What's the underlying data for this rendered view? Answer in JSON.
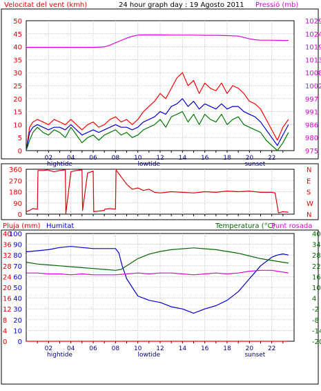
{
  "panel1": {
    "left_title": "Velocitat del vent (kmh)",
    "center_title": "24 hour graph day : 19 Agosto 2011",
    "right_title": "Pressió (mb)"
  },
  "panel3": {
    "left_title_a": "Pluja (mm)",
    "left_title_b": "Humitat",
    "right_title_a": "Temperatura (°C)",
    "right_title_b": "Punt rosada"
  },
  "x_axis": {
    "hour_labels": [
      "02",
      "04",
      "06",
      "08",
      "10",
      "12",
      "14",
      "16",
      "18",
      "20",
      "22"
    ],
    "sub_labels": [
      "hightide",
      "lowtide",
      "sunset"
    ]
  },
  "chart_data": [
    {
      "type": "line",
      "title": "24 hour graph day : 19 Agosto 2011",
      "xlabel": "",
      "x_unit": "hour",
      "ylabel": "Velocitat del vent (kmh)",
      "ylim": [
        0,
        50
      ],
      "yticks": [
        "0",
        "5",
        "10",
        "15",
        "20",
        "25",
        "30",
        "35",
        "40",
        "45",
        "50"
      ],
      "y2label": "Pressió (mb)",
      "y2lim": [
        974,
        1030
      ],
      "y2ticks": [
        "975",
        "980",
        "986",
        "991",
        "997",
        "1002",
        "1008",
        "1013",
        "1019",
        "1024",
        "1029"
      ],
      "grid": true,
      "series": [
        {
          "name": "",
          "color": "#ff0000",
          "axis": "left",
          "x": [
            0,
            0.3,
            0.6,
            1,
            1.5,
            2,
            2.5,
            3,
            3.5,
            4,
            4.5,
            5,
            5.5,
            6,
            6.5,
            7,
            7.5,
            8,
            8.5,
            9,
            9.5,
            10,
            10.5,
            11,
            11.5,
            12,
            12.5,
            13,
            13.5,
            14,
            14.5,
            15,
            15.5,
            16,
            16.5,
            17,
            17.5,
            18,
            18.5,
            19,
            19.5,
            20,
            20.5,
            21,
            21.5,
            22,
            22.5,
            23,
            23.5
          ],
          "y": [
            0,
            9,
            11,
            12,
            11,
            10,
            12,
            11,
            10,
            12,
            10,
            8,
            10,
            11,
            9,
            10,
            12,
            13,
            11,
            12,
            10,
            12,
            15,
            17,
            19,
            22,
            20,
            24,
            28,
            30,
            25,
            27,
            22,
            26,
            24,
            23,
            26,
            22,
            25,
            24,
            22,
            19,
            18,
            16,
            12,
            8,
            4,
            9,
            12
          ]
        },
        {
          "name": "",
          "color": "#0000cc",
          "axis": "left",
          "x": [
            0,
            0.3,
            0.6,
            1,
            1.5,
            2,
            2.5,
            3,
            3.5,
            4,
            4.5,
            5,
            5.5,
            6,
            6.5,
            7,
            7.5,
            8,
            8.5,
            9,
            9.5,
            10,
            10.5,
            11,
            11.5,
            12,
            12.5,
            13,
            13.5,
            14,
            14.5,
            15,
            15.5,
            16,
            16.5,
            17,
            17.5,
            18,
            18.5,
            19,
            19.5,
            20,
            20.5,
            21,
            21.5,
            22,
            22.5,
            23,
            23.5
          ],
          "y": [
            0,
            7,
            9,
            10,
            9,
            8,
            9,
            9,
            8,
            10,
            8,
            6,
            7,
            8,
            7,
            8,
            9,
            10,
            9,
            9,
            8,
            9,
            11,
            12,
            13,
            15,
            14,
            17,
            18,
            20,
            17,
            19,
            16,
            18,
            17,
            16,
            18,
            16,
            17,
            17,
            15,
            14,
            13,
            11,
            8,
            5,
            2,
            6,
            10
          ]
        },
        {
          "name": "",
          "color": "#007700",
          "axis": "left",
          "x": [
            0,
            0.3,
            0.6,
            1,
            1.5,
            2,
            2.5,
            3,
            3.5,
            4,
            4.5,
            5,
            5.5,
            6,
            6.5,
            7,
            7.5,
            8,
            8.5,
            9,
            9.5,
            10,
            10.5,
            11,
            11.5,
            12,
            12.5,
            13,
            13.5,
            14,
            14.5,
            15,
            15.5,
            16,
            16.5,
            17,
            17.5,
            18,
            18.5,
            19,
            19.5,
            20,
            20.5,
            21,
            21.5,
            22,
            22.5,
            23,
            23.5
          ],
          "y": [
            0,
            4,
            7,
            9,
            7,
            6,
            8,
            7,
            5,
            9,
            6,
            3,
            5,
            6,
            4,
            6,
            7,
            8,
            6,
            7,
            5,
            6,
            8,
            9,
            10,
            12,
            9,
            13,
            14,
            15,
            11,
            14,
            10,
            14,
            12,
            11,
            14,
            10,
            12,
            13,
            10,
            9,
            8,
            7,
            4,
            2,
            0,
            3,
            7
          ]
        },
        {
          "name": "",
          "color": "#dd00dd",
          "axis": "right",
          "x": [
            0,
            1,
            2,
            3,
            4,
            5,
            6,
            7,
            7.5,
            8,
            8.5,
            9,
            9.5,
            10,
            10.5,
            11,
            12,
            13,
            14,
            15,
            16,
            17,
            18,
            19,
            19.5,
            20,
            20.5,
            21,
            22,
            23,
            23.5
          ],
          "y": [
            1018.5,
            1018.5,
            1018.5,
            1018.5,
            1018.5,
            1018.5,
            1018.5,
            1018.7,
            1019.5,
            1020.5,
            1021.5,
            1022.5,
            1023.3,
            1023.8,
            1023.9,
            1023.9,
            1023.9,
            1023.8,
            1023.8,
            1023.8,
            1023.7,
            1023.7,
            1023.6,
            1023.4,
            1022.8,
            1022.2,
            1021.8,
            1021.6,
            1021.6,
            1021.5,
            1021.5
          ]
        }
      ]
    },
    {
      "type": "line",
      "xlabel": "",
      "x_unit": "hour",
      "ylabel": "",
      "ylim": [
        0,
        360
      ],
      "yticks": [
        "0",
        "90",
        "180",
        "270",
        "360"
      ],
      "y2ticks": [
        "N",
        "W",
        "S",
        "E",
        "N"
      ],
      "grid": true,
      "series": [
        {
          "name": "",
          "color": "#dd0000",
          "axis": "left",
          "x": [
            0,
            0.3,
            0.6,
            1,
            1.05,
            1.5,
            2,
            2.05,
            2.5,
            3,
            3.5,
            3.55,
            4,
            4.5,
            5,
            5.05,
            5.5,
            6,
            6.05,
            6.5,
            7,
            7.05,
            7.5,
            8,
            8.05,
            8.5,
            9,
            9.5,
            10,
            10.5,
            11,
            11.5,
            12,
            13,
            14,
            15,
            16,
            17,
            18,
            19,
            20,
            21,
            22,
            22.3,
            22.6,
            23,
            23.5
          ],
          "y": [
            20,
            30,
            45,
            40,
            350,
            350,
            355,
            350,
            340,
            350,
            355,
            5,
            340,
            350,
            355,
            30,
            330,
            345,
            20,
            25,
            30,
            40,
            45,
            40,
            355,
            300,
            240,
            200,
            210,
            190,
            200,
            175,
            170,
            180,
            175,
            170,
            180,
            175,
            185,
            180,
            185,
            175,
            175,
            170,
            10,
            20,
            15
          ]
        }
      ]
    },
    {
      "type": "line",
      "xlabel": "",
      "x_unit": "hour",
      "ylabel": "Humitat",
      "ylim": [
        0,
        100
      ],
      "yticks": [
        "0",
        "10",
        "20",
        "30",
        "40",
        "50",
        "60",
        "70",
        "80",
        "90",
        "100"
      ],
      "y2label": "Temperatura (°C)",
      "y2lim": [
        -20,
        40
      ],
      "y2ticks": [
        "-20",
        "-14",
        "-8",
        "-2",
        "4",
        "10",
        "16",
        "22",
        "28",
        "34",
        "40"
      ],
      "y3label": "Pluja (mm)",
      "y3ticks": [
        "0",
        "4",
        "8",
        "12",
        "16",
        "20",
        "24",
        "28",
        "32",
        "36",
        "40"
      ],
      "grid": true,
      "series": [
        {
          "name": "Humitat",
          "color": "#0000cc",
          "axis": "left",
          "x": [
            0,
            1,
            2,
            3,
            4,
            5,
            6,
            7,
            7.5,
            8,
            8.3,
            8.6,
            9,
            9.5,
            10,
            10.5,
            11,
            12,
            13,
            14,
            14.5,
            15,
            15.5,
            16,
            17,
            18,
            19,
            19.5,
            20,
            20.5,
            21,
            21.5,
            22,
            22.5,
            23,
            23.5
          ],
          "y": [
            83,
            84,
            85,
            87,
            88,
            87,
            86,
            86,
            86,
            86,
            82,
            70,
            58,
            50,
            42,
            40,
            38,
            36,
            32,
            30,
            28,
            26,
            28,
            30,
            33,
            38,
            46,
            52,
            58,
            64,
            70,
            74,
            78,
            80,
            81,
            80
          ]
        },
        {
          "name": "Temperatura",
          "color": "#006600",
          "axis": "right",
          "x": [
            0,
            1,
            2,
            3,
            4,
            5,
            6,
            7,
            8,
            8.5,
            9,
            9.5,
            10,
            11,
            12,
            13,
            14,
            15,
            16,
            17,
            18,
            19,
            20,
            21,
            22,
            23,
            23.5
          ],
          "y": [
            24,
            23,
            22.5,
            22,
            21.5,
            21,
            20.5,
            20,
            19.5,
            20,
            22,
            24,
            26,
            28.5,
            30,
            31,
            31.5,
            32,
            31.5,
            31,
            30,
            29,
            27.5,
            26,
            25,
            24,
            23.5
          ]
        },
        {
          "name": "Punt rosada",
          "color": "#dd00dd",
          "axis": "right",
          "x": [
            0,
            1,
            2,
            3,
            4,
            5,
            6,
            7,
            8,
            9,
            10,
            11,
            12,
            13,
            14,
            15,
            16,
            17,
            18,
            19,
            20,
            21,
            22,
            23,
            23.5
          ],
          "y": [
            18,
            18,
            17.5,
            17.5,
            17,
            17.5,
            17,
            17,
            17,
            17.5,
            18,
            17.5,
            18,
            18,
            17.5,
            17,
            17.5,
            18,
            17.5,
            18,
            19,
            19.5,
            19.5,
            18.5,
            18
          ]
        },
        {
          "name": "Pluja",
          "color": "#ff0000",
          "axis": "left",
          "x": [
            0,
            23.5
          ],
          "y": [
            0,
            0
          ]
        }
      ]
    }
  ]
}
